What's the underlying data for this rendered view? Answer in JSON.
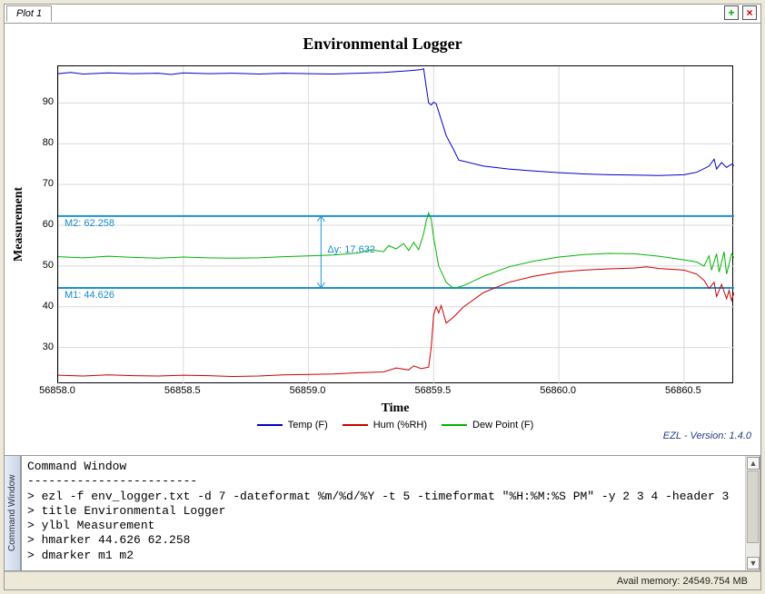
{
  "tab": {
    "label": "Plot 1"
  },
  "toolbar": {
    "add_tooltip": "Add",
    "close_tooltip": "Close"
  },
  "chart": {
    "type": "line",
    "title": "Environmental Logger",
    "xlabel": "Time",
    "ylabel": "Measurement",
    "title_font": "Times New Roman",
    "title_fontsize": 18,
    "label_fontsize": 14,
    "tick_fontsize": 11,
    "background_color": "#ffffff",
    "grid_color": "#d9d9d9",
    "border_color": "#000000",
    "xlim": [
      56858.0,
      56860.7
    ],
    "ylim": [
      21,
      99
    ],
    "yticks": [
      30,
      40,
      50,
      60,
      70,
      80,
      90
    ],
    "xticks": [
      56858.0,
      56858.5,
      56859.0,
      56859.5,
      56860.0,
      56860.5
    ],
    "xtick_labels": [
      "56858.0",
      "56858.5",
      "56859.0",
      "56859.5",
      "56860.0",
      "56860.5"
    ],
    "markers": {
      "m1": {
        "y": 44.626,
        "label": "M1: 44.626"
      },
      "m2": {
        "y": 62.258,
        "label": "M2: 62.258"
      },
      "delta_label": "Δy: 17.632",
      "color": "#1e90d4",
      "line_width": 2
    },
    "series": [
      {
        "name": "Temp (F)",
        "color": "#0000c8",
        "line_width": 1,
        "data": [
          [
            56858.0,
            97.2
          ],
          [
            56858.05,
            97.5
          ],
          [
            56858.1,
            97.1
          ],
          [
            56858.2,
            97.4
          ],
          [
            56858.3,
            97.2
          ],
          [
            56858.4,
            97.3
          ],
          [
            56858.45,
            97.0
          ],
          [
            56858.5,
            97.4
          ],
          [
            56858.6,
            97.2
          ],
          [
            56858.7,
            97.3
          ],
          [
            56858.8,
            97.1
          ],
          [
            56858.9,
            97.3
          ],
          [
            56859.0,
            97.2
          ],
          [
            56859.1,
            97.1
          ],
          [
            56859.2,
            97.3
          ],
          [
            56859.3,
            97.5
          ],
          [
            56859.4,
            97.9
          ],
          [
            56859.45,
            98.2
          ],
          [
            56859.46,
            98.4
          ],
          [
            56859.47,
            94.0
          ],
          [
            56859.48,
            90.0
          ],
          [
            56859.49,
            89.5
          ],
          [
            56859.5,
            90.2
          ],
          [
            56859.51,
            89.8
          ],
          [
            56859.55,
            82.0
          ],
          [
            56859.58,
            78.5
          ],
          [
            56859.6,
            76.0
          ],
          [
            56859.7,
            74.5
          ],
          [
            56859.8,
            73.8
          ],
          [
            56859.9,
            73.3
          ],
          [
            56860.0,
            72.9
          ],
          [
            56860.1,
            72.6
          ],
          [
            56860.2,
            72.4
          ],
          [
            56860.3,
            72.3
          ],
          [
            56860.4,
            72.2
          ],
          [
            56860.5,
            72.4
          ],
          [
            56860.55,
            73.0
          ],
          [
            56860.6,
            74.5
          ],
          [
            56860.62,
            76.2
          ],
          [
            56860.63,
            73.8
          ],
          [
            56860.65,
            75.4
          ],
          [
            56860.67,
            74.2
          ],
          [
            56860.69,
            75.0
          ],
          [
            56860.7,
            74.6
          ]
        ]
      },
      {
        "name": "Hum (%RH)",
        "color": "#c80000",
        "line_width": 1,
        "data": [
          [
            56858.0,
            23.2
          ],
          [
            56858.1,
            23.0
          ],
          [
            56858.2,
            23.3
          ],
          [
            56858.3,
            23.1
          ],
          [
            56858.4,
            23.0
          ],
          [
            56858.5,
            23.2
          ],
          [
            56858.6,
            23.1
          ],
          [
            56858.7,
            22.9
          ],
          [
            56858.8,
            23.0
          ],
          [
            56858.9,
            23.3
          ],
          [
            56859.0,
            23.4
          ],
          [
            56859.1,
            23.5
          ],
          [
            56859.2,
            23.8
          ],
          [
            56859.3,
            24.0
          ],
          [
            56859.35,
            25.0
          ],
          [
            56859.4,
            24.5
          ],
          [
            56859.42,
            25.5
          ],
          [
            56859.45,
            24.8
          ],
          [
            56859.48,
            25.2
          ],
          [
            56859.49,
            30.0
          ],
          [
            56859.5,
            38.0
          ],
          [
            56859.51,
            40.0
          ],
          [
            56859.52,
            38.5
          ],
          [
            56859.53,
            40.3
          ],
          [
            56859.55,
            36.0
          ],
          [
            56859.58,
            37.5
          ],
          [
            56859.62,
            40.0
          ],
          [
            56859.7,
            43.5
          ],
          [
            56859.8,
            46.0
          ],
          [
            56859.9,
            47.5
          ],
          [
            56860.0,
            48.5
          ],
          [
            56860.1,
            49.0
          ],
          [
            56860.2,
            49.3
          ],
          [
            56860.3,
            49.5
          ],
          [
            56860.35,
            49.8
          ],
          [
            56860.4,
            49.4
          ],
          [
            56860.45,
            49.2
          ],
          [
            56860.5,
            49.0
          ],
          [
            56860.55,
            48.0
          ],
          [
            56860.58,
            46.5
          ],
          [
            56860.6,
            44.5
          ],
          [
            56860.62,
            46.0
          ],
          [
            56860.63,
            42.5
          ],
          [
            56860.65,
            45.5
          ],
          [
            56860.67,
            42.0
          ],
          [
            56860.68,
            44.0
          ],
          [
            56860.69,
            41.5
          ],
          [
            56860.7,
            43.5
          ]
        ]
      },
      {
        "name": "Dew Point (F)",
        "color": "#00b400",
        "line_width": 1,
        "data": [
          [
            56858.0,
            52.3
          ],
          [
            56858.1,
            52.0
          ],
          [
            56858.2,
            52.4
          ],
          [
            56858.3,
            52.1
          ],
          [
            56858.4,
            51.9
          ],
          [
            56858.5,
            52.2
          ],
          [
            56858.6,
            52.0
          ],
          [
            56858.7,
            51.9
          ],
          [
            56858.8,
            52.0
          ],
          [
            56858.9,
            52.3
          ],
          [
            56859.0,
            52.5
          ],
          [
            56859.1,
            52.7
          ],
          [
            56859.2,
            53.2
          ],
          [
            56859.25,
            54.0
          ],
          [
            56859.3,
            53.5
          ],
          [
            56859.32,
            55.0
          ],
          [
            56859.35,
            54.2
          ],
          [
            56859.38,
            55.5
          ],
          [
            56859.4,
            53.8
          ],
          [
            56859.42,
            55.8
          ],
          [
            56859.44,
            54.0
          ],
          [
            56859.46,
            58.0
          ],
          [
            56859.47,
            61.0
          ],
          [
            56859.48,
            63.0
          ],
          [
            56859.49,
            61.5
          ],
          [
            56859.5,
            57.0
          ],
          [
            56859.52,
            50.0
          ],
          [
            56859.55,
            46.0
          ],
          [
            56859.58,
            44.5
          ],
          [
            56859.62,
            45.2
          ],
          [
            56859.7,
            47.5
          ],
          [
            56859.8,
            49.8
          ],
          [
            56859.9,
            51.2
          ],
          [
            56860.0,
            52.2
          ],
          [
            56860.1,
            52.8
          ],
          [
            56860.2,
            53.1
          ],
          [
            56860.3,
            53.0
          ],
          [
            56860.4,
            52.4
          ],
          [
            56860.5,
            51.5
          ],
          [
            56860.55,
            51.0
          ],
          [
            56860.58,
            50.0
          ],
          [
            56860.6,
            52.5
          ],
          [
            56860.61,
            49.0
          ],
          [
            56860.63,
            53.0
          ],
          [
            56860.64,
            48.5
          ],
          [
            56860.66,
            53.5
          ],
          [
            56860.67,
            48.0
          ],
          [
            56860.69,
            53.0
          ],
          [
            56860.7,
            52.0
          ]
        ]
      }
    ]
  },
  "legend": {
    "items": [
      {
        "label": "Temp (F)",
        "color": "#0000c8"
      },
      {
        "label": "Hum (%RH)",
        "color": "#c80000"
      },
      {
        "label": "Dew Point (F)",
        "color": "#00b400"
      }
    ]
  },
  "version_note": "EZL - Version: 1.4.0",
  "command_window": {
    "sidebar_label": "Command Window",
    "title_line": "Command Window",
    "divider": "------------------------",
    "lines": [
      "ezl -f env_logger.txt -d 7 -dateformat %m/%d/%Y -t 5 -timeformat \"%H:%M:%S PM\" -y 2 3 4 -header 3",
      "title Environmental Logger",
      "ylbl Measurement",
      "hmarker 44.626 62.258",
      "dmarker m1 m2"
    ],
    "prompt": ">"
  },
  "status": {
    "avail_memory_label": "Avail memory:",
    "avail_memory_value": "24549.754 MB"
  }
}
